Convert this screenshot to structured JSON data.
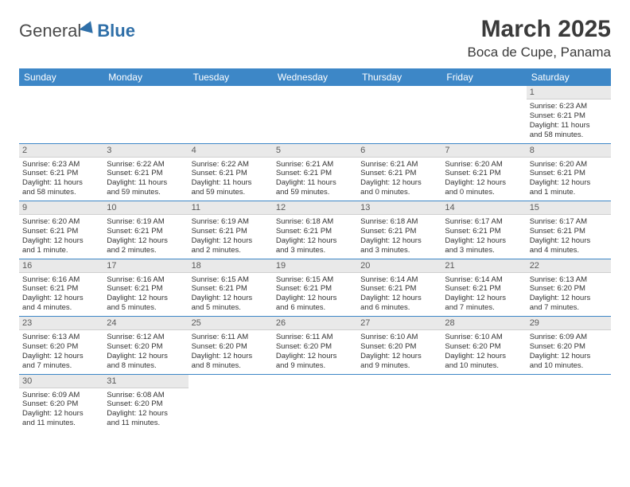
{
  "brand": {
    "part1": "General",
    "part2": "Blue"
  },
  "title": "March 2025",
  "location": "Boca de Cupe, Panama",
  "colors": {
    "header_bg": "#3d87c7",
    "daynum_bg": "#e9e9e9",
    "row_border": "#3d87c7"
  },
  "dayNames": [
    "Sunday",
    "Monday",
    "Tuesday",
    "Wednesday",
    "Thursday",
    "Friday",
    "Saturday"
  ],
  "startOffset": 6,
  "cells": [
    {
      "n": "1",
      "sr": "Sunrise: 6:23 AM",
      "ss": "Sunset: 6:21 PM",
      "d1": "Daylight: 11 hours",
      "d2": "and 58 minutes."
    },
    {
      "n": "2",
      "sr": "Sunrise: 6:23 AM",
      "ss": "Sunset: 6:21 PM",
      "d1": "Daylight: 11 hours",
      "d2": "and 58 minutes."
    },
    {
      "n": "3",
      "sr": "Sunrise: 6:22 AM",
      "ss": "Sunset: 6:21 PM",
      "d1": "Daylight: 11 hours",
      "d2": "and 59 minutes."
    },
    {
      "n": "4",
      "sr": "Sunrise: 6:22 AM",
      "ss": "Sunset: 6:21 PM",
      "d1": "Daylight: 11 hours",
      "d2": "and 59 minutes."
    },
    {
      "n": "5",
      "sr": "Sunrise: 6:21 AM",
      "ss": "Sunset: 6:21 PM",
      "d1": "Daylight: 11 hours",
      "d2": "and 59 minutes."
    },
    {
      "n": "6",
      "sr": "Sunrise: 6:21 AM",
      "ss": "Sunset: 6:21 PM",
      "d1": "Daylight: 12 hours",
      "d2": "and 0 minutes."
    },
    {
      "n": "7",
      "sr": "Sunrise: 6:20 AM",
      "ss": "Sunset: 6:21 PM",
      "d1": "Daylight: 12 hours",
      "d2": "and 0 minutes."
    },
    {
      "n": "8",
      "sr": "Sunrise: 6:20 AM",
      "ss": "Sunset: 6:21 PM",
      "d1": "Daylight: 12 hours",
      "d2": "and 1 minute."
    },
    {
      "n": "9",
      "sr": "Sunrise: 6:20 AM",
      "ss": "Sunset: 6:21 PM",
      "d1": "Daylight: 12 hours",
      "d2": "and 1 minute."
    },
    {
      "n": "10",
      "sr": "Sunrise: 6:19 AM",
      "ss": "Sunset: 6:21 PM",
      "d1": "Daylight: 12 hours",
      "d2": "and 2 minutes."
    },
    {
      "n": "11",
      "sr": "Sunrise: 6:19 AM",
      "ss": "Sunset: 6:21 PM",
      "d1": "Daylight: 12 hours",
      "d2": "and 2 minutes."
    },
    {
      "n": "12",
      "sr": "Sunrise: 6:18 AM",
      "ss": "Sunset: 6:21 PM",
      "d1": "Daylight: 12 hours",
      "d2": "and 3 minutes."
    },
    {
      "n": "13",
      "sr": "Sunrise: 6:18 AM",
      "ss": "Sunset: 6:21 PM",
      "d1": "Daylight: 12 hours",
      "d2": "and 3 minutes."
    },
    {
      "n": "14",
      "sr": "Sunrise: 6:17 AM",
      "ss": "Sunset: 6:21 PM",
      "d1": "Daylight: 12 hours",
      "d2": "and 3 minutes."
    },
    {
      "n": "15",
      "sr": "Sunrise: 6:17 AM",
      "ss": "Sunset: 6:21 PM",
      "d1": "Daylight: 12 hours",
      "d2": "and 4 minutes."
    },
    {
      "n": "16",
      "sr": "Sunrise: 6:16 AM",
      "ss": "Sunset: 6:21 PM",
      "d1": "Daylight: 12 hours",
      "d2": "and 4 minutes."
    },
    {
      "n": "17",
      "sr": "Sunrise: 6:16 AM",
      "ss": "Sunset: 6:21 PM",
      "d1": "Daylight: 12 hours",
      "d2": "and 5 minutes."
    },
    {
      "n": "18",
      "sr": "Sunrise: 6:15 AM",
      "ss": "Sunset: 6:21 PM",
      "d1": "Daylight: 12 hours",
      "d2": "and 5 minutes."
    },
    {
      "n": "19",
      "sr": "Sunrise: 6:15 AM",
      "ss": "Sunset: 6:21 PM",
      "d1": "Daylight: 12 hours",
      "d2": "and 6 minutes."
    },
    {
      "n": "20",
      "sr": "Sunrise: 6:14 AM",
      "ss": "Sunset: 6:21 PM",
      "d1": "Daylight: 12 hours",
      "d2": "and 6 minutes."
    },
    {
      "n": "21",
      "sr": "Sunrise: 6:14 AM",
      "ss": "Sunset: 6:21 PM",
      "d1": "Daylight: 12 hours",
      "d2": "and 7 minutes."
    },
    {
      "n": "22",
      "sr": "Sunrise: 6:13 AM",
      "ss": "Sunset: 6:20 PM",
      "d1": "Daylight: 12 hours",
      "d2": "and 7 minutes."
    },
    {
      "n": "23",
      "sr": "Sunrise: 6:13 AM",
      "ss": "Sunset: 6:20 PM",
      "d1": "Daylight: 12 hours",
      "d2": "and 7 minutes."
    },
    {
      "n": "24",
      "sr": "Sunrise: 6:12 AM",
      "ss": "Sunset: 6:20 PM",
      "d1": "Daylight: 12 hours",
      "d2": "and 8 minutes."
    },
    {
      "n": "25",
      "sr": "Sunrise: 6:11 AM",
      "ss": "Sunset: 6:20 PM",
      "d1": "Daylight: 12 hours",
      "d2": "and 8 minutes."
    },
    {
      "n": "26",
      "sr": "Sunrise: 6:11 AM",
      "ss": "Sunset: 6:20 PM",
      "d1": "Daylight: 12 hours",
      "d2": "and 9 minutes."
    },
    {
      "n": "27",
      "sr": "Sunrise: 6:10 AM",
      "ss": "Sunset: 6:20 PM",
      "d1": "Daylight: 12 hours",
      "d2": "and 9 minutes."
    },
    {
      "n": "28",
      "sr": "Sunrise: 6:10 AM",
      "ss": "Sunset: 6:20 PM",
      "d1": "Daylight: 12 hours",
      "d2": "and 10 minutes."
    },
    {
      "n": "29",
      "sr": "Sunrise: 6:09 AM",
      "ss": "Sunset: 6:20 PM",
      "d1": "Daylight: 12 hours",
      "d2": "and 10 minutes."
    },
    {
      "n": "30",
      "sr": "Sunrise: 6:09 AM",
      "ss": "Sunset: 6:20 PM",
      "d1": "Daylight: 12 hours",
      "d2": "and 11 minutes."
    },
    {
      "n": "31",
      "sr": "Sunrise: 6:08 AM",
      "ss": "Sunset: 6:20 PM",
      "d1": "Daylight: 12 hours",
      "d2": "and 11 minutes."
    }
  ]
}
